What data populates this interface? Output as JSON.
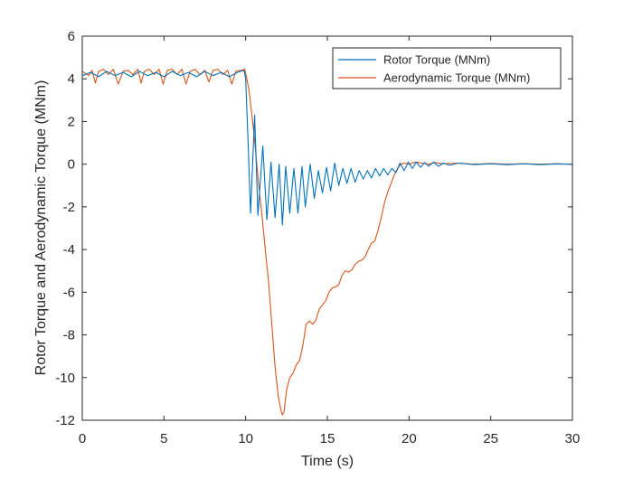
{
  "chart_data": {
    "type": "line",
    "title": "",
    "xlabel": "Time (s)",
    "ylabel": "Rotor Torque and Aerodynamic Torque (MNm)",
    "xlim": [
      0,
      30
    ],
    "ylim": [
      -12,
      6
    ],
    "xticks": [
      0,
      5,
      10,
      15,
      20,
      25,
      30
    ],
    "yticks": [
      -12,
      -10,
      -8,
      -6,
      -4,
      -2,
      0,
      2,
      4,
      6
    ],
    "grid": false,
    "legend_location": "top-right",
    "series": [
      {
        "name": "Rotor Torque (MNm)",
        "color": "#0072BD",
        "points": [
          [
            0,
            4.15
          ],
          [
            0.5,
            4.3
          ],
          [
            1.0,
            4.1
          ],
          [
            1.5,
            4.35
          ],
          [
            2.0,
            4.15
          ],
          [
            2.5,
            4.3
          ],
          [
            3.0,
            4.1
          ],
          [
            3.5,
            4.35
          ],
          [
            4.0,
            4.15
          ],
          [
            4.5,
            4.3
          ],
          [
            5.0,
            4.1
          ],
          [
            5.5,
            4.35
          ],
          [
            6.0,
            4.15
          ],
          [
            6.5,
            4.3
          ],
          [
            7.0,
            4.1
          ],
          [
            7.5,
            4.35
          ],
          [
            8.0,
            4.15
          ],
          [
            8.5,
            4.3
          ],
          [
            9.0,
            4.1
          ],
          [
            9.5,
            4.3
          ],
          [
            9.9,
            4.4
          ],
          [
            10.0,
            4.0
          ],
          [
            10.15,
            1.0
          ],
          [
            10.3,
            -2.3
          ],
          [
            10.55,
            2.3
          ],
          [
            10.75,
            -2.4
          ],
          [
            11.05,
            0.85
          ],
          [
            11.3,
            -2.6
          ],
          [
            11.55,
            0.1
          ],
          [
            11.8,
            -2.5
          ],
          [
            12.05,
            0.0
          ],
          [
            12.25,
            -2.85
          ],
          [
            12.45,
            -0.1
          ],
          [
            12.7,
            -2.3
          ],
          [
            12.95,
            -0.2
          ],
          [
            13.2,
            -2.3
          ],
          [
            13.45,
            -0.1
          ],
          [
            13.65,
            -2.0
          ],
          [
            13.95,
            0.0
          ],
          [
            14.2,
            -1.6
          ],
          [
            14.45,
            -0.3
          ],
          [
            14.7,
            -1.35
          ],
          [
            14.95,
            -0.15
          ],
          [
            15.2,
            -1.25
          ],
          [
            15.45,
            0.05
          ],
          [
            15.7,
            -1.0
          ],
          [
            15.95,
            -0.2
          ],
          [
            16.2,
            -0.9
          ],
          [
            16.45,
            -0.2
          ],
          [
            16.7,
            -0.85
          ],
          [
            16.95,
            -0.3
          ],
          [
            17.2,
            -0.7
          ],
          [
            17.45,
            -0.3
          ],
          [
            17.7,
            -0.65
          ],
          [
            17.95,
            -0.2
          ],
          [
            18.2,
            -0.55
          ],
          [
            18.45,
            -0.2
          ],
          [
            18.7,
            -0.5
          ],
          [
            18.95,
            -0.2
          ],
          [
            19.2,
            -0.4
          ],
          [
            19.45,
            0.05
          ],
          [
            19.7,
            -0.3
          ],
          [
            19.95,
            0.1
          ],
          [
            20.2,
            -0.2
          ],
          [
            20.45,
            0.1
          ],
          [
            20.7,
            -0.15
          ],
          [
            20.95,
            0.08
          ],
          [
            21.2,
            -0.1
          ],
          [
            21.5,
            0.1
          ],
          [
            21.8,
            -0.1
          ],
          [
            22.1,
            0.05
          ],
          [
            22.5,
            -0.05
          ],
          [
            23.0,
            0.05
          ],
          [
            24.0,
            -0.02
          ],
          [
            25.0,
            0.02
          ],
          [
            26.0,
            -0.02
          ],
          [
            27.0,
            0.02
          ],
          [
            28.0,
            -0.02
          ],
          [
            29.0,
            0.01
          ],
          [
            30.0,
            0.0
          ]
        ]
      },
      {
        "name": "Aerodynamic Torque (MNm)",
        "color": "#D95319",
        "points": [
          [
            0,
            4.35
          ],
          [
            0.4,
            4.15
          ],
          [
            0.6,
            4.4
          ],
          [
            0.8,
            3.8
          ],
          [
            1.0,
            4.35
          ],
          [
            1.3,
            4.45
          ],
          [
            1.6,
            4.2
          ],
          [
            1.9,
            4.45
          ],
          [
            2.2,
            3.75
          ],
          [
            2.5,
            4.35
          ],
          [
            2.8,
            4.4
          ],
          [
            3.1,
            4.2
          ],
          [
            3.4,
            4.45
          ],
          [
            3.6,
            3.8
          ],
          [
            3.8,
            4.35
          ],
          [
            4.1,
            4.45
          ],
          [
            4.4,
            4.2
          ],
          [
            4.7,
            4.45
          ],
          [
            4.95,
            3.75
          ],
          [
            5.2,
            4.4
          ],
          [
            5.5,
            4.45
          ],
          [
            5.8,
            4.2
          ],
          [
            6.1,
            4.45
          ],
          [
            6.35,
            3.75
          ],
          [
            6.6,
            4.35
          ],
          [
            6.9,
            4.45
          ],
          [
            7.2,
            4.2
          ],
          [
            7.5,
            4.4
          ],
          [
            7.75,
            3.85
          ],
          [
            8.0,
            4.4
          ],
          [
            8.3,
            4.45
          ],
          [
            8.6,
            4.2
          ],
          [
            8.9,
            4.4
          ],
          [
            9.15,
            3.75
          ],
          [
            9.4,
            4.35
          ],
          [
            9.7,
            4.4
          ],
          [
            9.95,
            4.45
          ],
          [
            10.2,
            3.5
          ],
          [
            10.5,
            1.5
          ],
          [
            10.8,
            -1.0
          ],
          [
            11.0,
            -2.4
          ],
          [
            11.2,
            -4.0
          ],
          [
            11.4,
            -5.5
          ],
          [
            11.6,
            -7.5
          ],
          [
            11.8,
            -9.5
          ],
          [
            12.0,
            -10.9
          ],
          [
            12.15,
            -11.5
          ],
          [
            12.25,
            -11.75
          ],
          [
            12.35,
            -11.6
          ],
          [
            12.5,
            -10.6
          ],
          [
            12.7,
            -10.0
          ],
          [
            12.9,
            -9.8
          ],
          [
            13.1,
            -9.4
          ],
          [
            13.3,
            -9.2
          ],
          [
            13.5,
            -8.5
          ],
          [
            13.7,
            -7.5
          ],
          [
            13.9,
            -7.35
          ],
          [
            14.1,
            -7.5
          ],
          [
            14.3,
            -7.3
          ],
          [
            14.5,
            -6.8
          ],
          [
            14.7,
            -6.6
          ],
          [
            14.9,
            -6.4
          ],
          [
            15.1,
            -6.0
          ],
          [
            15.3,
            -5.8
          ],
          [
            15.5,
            -5.75
          ],
          [
            15.7,
            -5.65
          ],
          [
            15.9,
            -5.2
          ],
          [
            16.1,
            -5.0
          ],
          [
            16.3,
            -5.05
          ],
          [
            16.5,
            -4.95
          ],
          [
            16.7,
            -4.7
          ],
          [
            16.9,
            -4.55
          ],
          [
            17.1,
            -4.5
          ],
          [
            17.3,
            -4.35
          ],
          [
            17.5,
            -4.0
          ],
          [
            17.7,
            -3.7
          ],
          [
            17.9,
            -3.6
          ],
          [
            18.1,
            -3.1
          ],
          [
            18.3,
            -2.5
          ],
          [
            18.5,
            -1.8
          ],
          [
            18.7,
            -1.3
          ],
          [
            18.9,
            -0.9
          ],
          [
            19.1,
            -0.5
          ],
          [
            19.3,
            -0.2
          ],
          [
            19.5,
            0.0
          ],
          [
            19.7,
            0.05
          ],
          [
            20.0,
            0.0
          ],
          [
            20.4,
            0.1
          ],
          [
            20.8,
            0.05
          ],
          [
            21.2,
            0.0
          ],
          [
            21.6,
            0.08
          ],
          [
            22.0,
            0.02
          ],
          [
            23.0,
            0.05
          ],
          [
            24.0,
            0.0
          ],
          [
            25.0,
            0.03
          ],
          [
            26.0,
            0.0
          ],
          [
            27.0,
            0.02
          ],
          [
            28.0,
            0.0
          ],
          [
            29.0,
            0.02
          ],
          [
            30.0,
            0.0
          ]
        ]
      }
    ]
  }
}
